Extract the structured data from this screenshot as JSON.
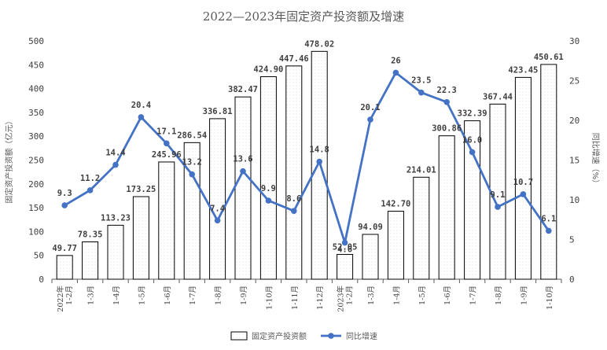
{
  "chart_data": {
    "type": "bar",
    "title": "2022—2023年固定资产投资额及增速",
    "ylabel": "固定资产投资额（亿元）",
    "y2label": "同比增速（%）",
    "ylim": [
      0,
      500
    ],
    "y2lim": [
      0,
      30
    ],
    "yticks": [
      "0",
      "50",
      "100",
      "150",
      "200",
      "250",
      "300",
      "350",
      "400",
      "450",
      "500"
    ],
    "y2ticks": [
      "0",
      "5",
      "10",
      "15",
      "20",
      "25",
      "30"
    ],
    "categories": [
      {
        "line1": "2022年",
        "line2": "1-2月"
      },
      {
        "line1": "",
        "line2": "1-3月"
      },
      {
        "line1": "",
        "line2": "1-4月"
      },
      {
        "line1": "",
        "line2": "1-5月"
      },
      {
        "line1": "",
        "line2": "1-6月"
      },
      {
        "line1": "",
        "line2": "1-7月"
      },
      {
        "line1": "",
        "line2": "1-8月"
      },
      {
        "line1": "",
        "line2": "1-9月"
      },
      {
        "line1": "",
        "line2": "1-10月"
      },
      {
        "line1": "",
        "line2": "1-11月"
      },
      {
        "line1": "",
        "line2": "1-12月"
      },
      {
        "line1": "2023年",
        "line2": "1-2月"
      },
      {
        "line1": "",
        "line2": "1-3月"
      },
      {
        "line1": "",
        "line2": "1-4月"
      },
      {
        "line1": "",
        "line2": "1-5月"
      },
      {
        "line1": "",
        "line2": "1-6月"
      },
      {
        "line1": "",
        "line2": "1-7月"
      },
      {
        "line1": "",
        "line2": "1-8月"
      },
      {
        "line1": "",
        "line2": "1-9月"
      },
      {
        "line1": "",
        "line2": "1-10月"
      }
    ],
    "series": [
      {
        "name": "固定资产投资额",
        "kind": "bar",
        "axis": "left",
        "values": [
          49.77,
          78.35,
          113.23,
          173.25,
          245.96,
          286.54,
          336.81,
          382.47,
          424.9,
          447.46,
          478.02,
          52.05,
          94.09,
          142.7,
          214.01,
          300.86,
          332.39,
          367.44,
          423.45,
          450.61
        ],
        "labels": [
          "49.77",
          "78.35",
          "113.23",
          "173.25",
          "245.96",
          "286.54",
          "336.81",
          "382.47",
          "424.90",
          "447.46",
          "478.02",
          "52.05",
          "94.09",
          "142.70",
          "214.01",
          "300.86",
          "332.39",
          "367.44",
          "423.45",
          "450.61"
        ]
      },
      {
        "name": "同比增速",
        "kind": "line",
        "axis": "right",
        "color": "#4472C4",
        "values": [
          9.3,
          11.2,
          14.4,
          20.4,
          17.1,
          13.2,
          7.4,
          13.6,
          9.9,
          8.6,
          14.8,
          4.6,
          20.1,
          26,
          23.5,
          22.3,
          16.0,
          9.1,
          10.7,
          6.1
        ],
        "labels": [
          "9.3",
          "11.2",
          "14.4",
          "20.4",
          "17.1",
          "13.2",
          "7.4",
          "13.6",
          "9.9",
          "8.6",
          "14.8",
          "4.6",
          "20.1",
          "26",
          "23.5",
          "22.3",
          "16.0",
          "9.1",
          "10.7",
          "6.1"
        ]
      }
    ],
    "legend": {
      "position": "bottom"
    }
  }
}
